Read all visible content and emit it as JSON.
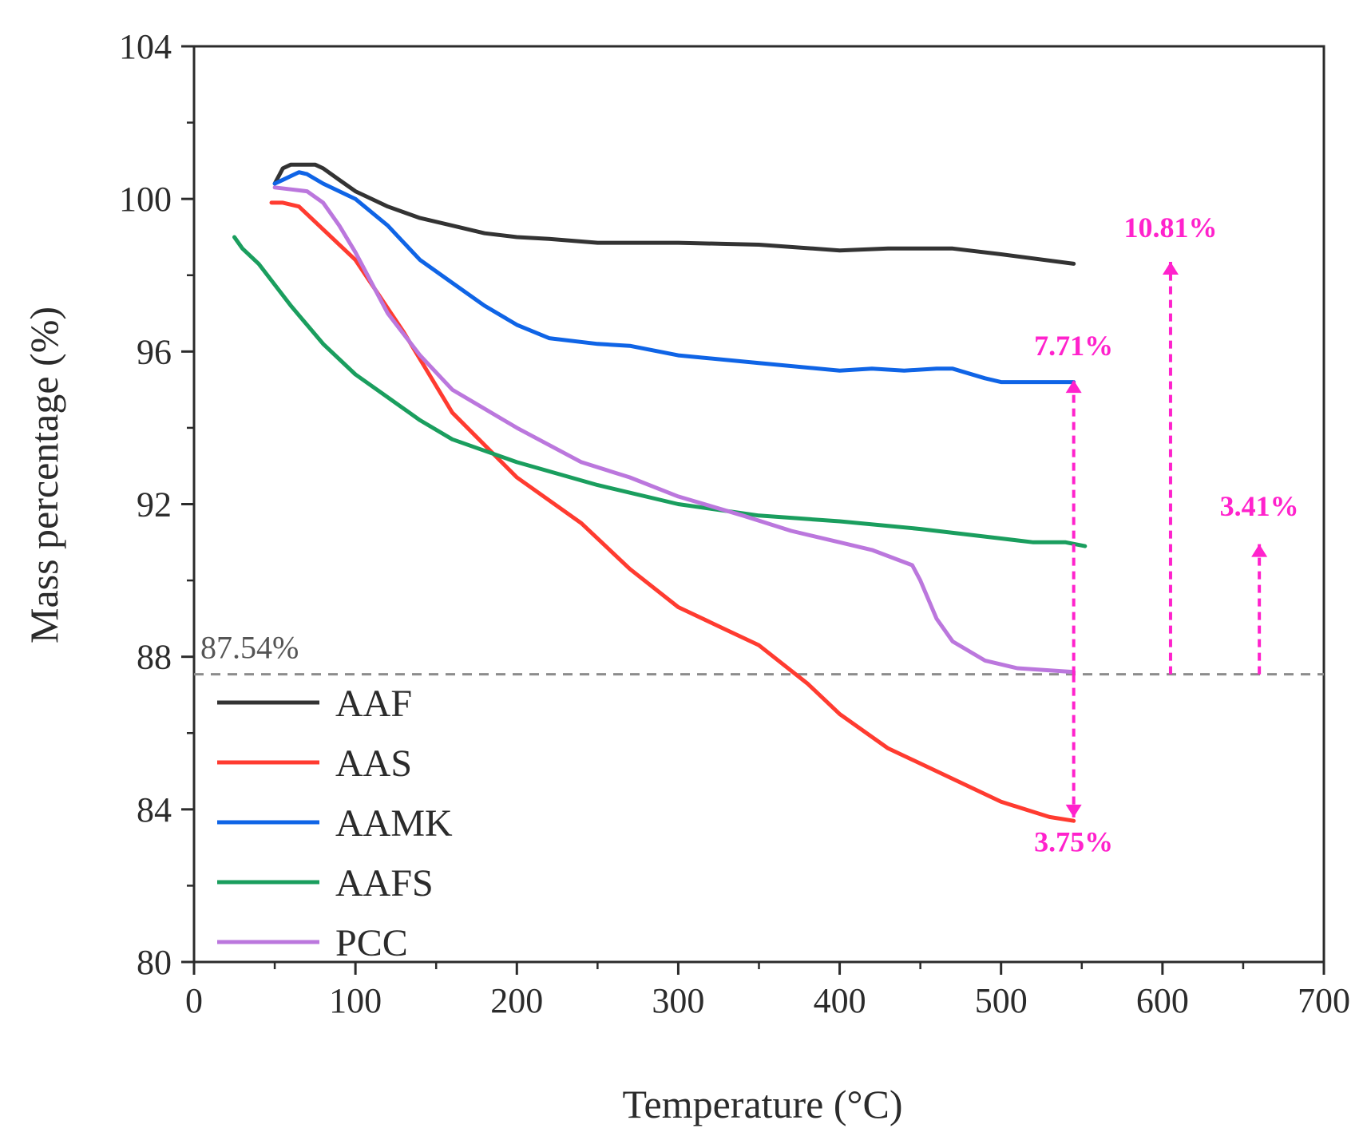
{
  "chart_data": {
    "type": "line",
    "title": "",
    "xlabel": "Temperature (°C)",
    "ylabel": "Mass percentage (%)",
    "xlim": [
      0,
      700
    ],
    "ylim": [
      80,
      104
    ],
    "xticks": [
      0,
      100,
      200,
      300,
      400,
      500,
      600,
      700
    ],
    "yticks": [
      80,
      84,
      88,
      92,
      96,
      100,
      104
    ],
    "xtick_labels": [
      "0",
      "100",
      "200",
      "300",
      "400",
      "500",
      "600",
      "700"
    ],
    "ytick_labels": [
      "80",
      "84",
      "88",
      "92",
      "96",
      "100",
      "104"
    ],
    "grid": false,
    "legend_position": "bottom-left",
    "annotation_color": "#ff22cc",
    "series": [
      {
        "name": "AAF",
        "color": "#333333",
        "x": [
          50,
          55,
          60,
          65,
          70,
          75,
          80,
          90,
          100,
          120,
          140,
          160,
          180,
          200,
          220,
          250,
          300,
          350,
          400,
          430,
          450,
          470,
          500,
          545
        ],
        "y": [
          100.4,
          100.8,
          100.9,
          100.9,
          100.9,
          100.9,
          100.8,
          100.5,
          100.2,
          99.8,
          99.5,
          99.3,
          99.1,
          99.0,
          98.95,
          98.85,
          98.85,
          98.8,
          98.65,
          98.7,
          98.7,
          98.7,
          98.55,
          98.3
        ]
      },
      {
        "name": "AAS",
        "color": "#ff3b30",
        "x": [
          48,
          55,
          65,
          75,
          100,
          130,
          160,
          200,
          240,
          270,
          300,
          330,
          350,
          380,
          400,
          430,
          460,
          500,
          530,
          545
        ],
        "y": [
          99.9,
          99.9,
          99.8,
          99.4,
          98.4,
          96.5,
          94.4,
          92.7,
          91.5,
          90.3,
          89.3,
          88.7,
          88.3,
          87.3,
          86.5,
          85.6,
          85.0,
          84.2,
          83.8,
          83.7
        ]
      },
      {
        "name": "AAMK",
        "color": "#0f64e6",
        "x": [
          50,
          55,
          60,
          65,
          70,
          80,
          100,
          120,
          140,
          160,
          180,
          200,
          220,
          250,
          270,
          300,
          350,
          400,
          420,
          440,
          460,
          470,
          490,
          500,
          545
        ],
        "y": [
          100.4,
          100.5,
          100.6,
          100.7,
          100.65,
          100.4,
          100.0,
          99.3,
          98.4,
          97.8,
          97.2,
          96.7,
          96.35,
          96.2,
          96.15,
          95.9,
          95.7,
          95.5,
          95.55,
          95.5,
          95.55,
          95.55,
          95.3,
          95.2,
          95.2
        ]
      },
      {
        "name": "AAFS",
        "color": "#1a9e5e",
        "x": [
          25,
          30,
          40,
          60,
          80,
          100,
          120,
          140,
          160,
          200,
          250,
          300,
          350,
          400,
          450,
          500,
          520,
          540,
          552
        ],
        "y": [
          99.0,
          98.7,
          98.3,
          97.2,
          96.2,
          95.4,
          94.8,
          94.2,
          93.7,
          93.1,
          92.5,
          92.0,
          91.7,
          91.55,
          91.35,
          91.1,
          91.0,
          91.0,
          90.9
        ]
      },
      {
        "name": "PCC",
        "color": "#bb77dd",
        "x": [
          50,
          60,
          70,
          80,
          90,
          100,
          120,
          140,
          160,
          200,
          240,
          270,
          300,
          340,
          370,
          400,
          420,
          445,
          450,
          460,
          470,
          490,
          510,
          545
        ],
        "y": [
          100.3,
          100.25,
          100.2,
          99.9,
          99.3,
          98.6,
          97.0,
          95.9,
          95.0,
          94.0,
          93.1,
          92.7,
          92.2,
          91.7,
          91.3,
          91.0,
          90.8,
          90.4,
          90.0,
          89.0,
          88.4,
          87.9,
          87.7,
          87.6
        ]
      }
    ],
    "reference_line": {
      "y": 87.54,
      "label": "87.54%",
      "color": "#8c8c8c"
    },
    "annotations": [
      {
        "label": "7.71%",
        "arrow_x": 545,
        "from_y": 87.54,
        "to_y": 95.25,
        "style": "up",
        "label_x": 545,
        "label_y": 95.9
      },
      {
        "label": "3.75%",
        "arrow_x": 545,
        "from_y": 87.54,
        "to_y": 83.79,
        "style": "down",
        "label_x": 545,
        "label_y": 82.9
      },
      {
        "label": "10.81%",
        "arrow_x": 605,
        "from_y": 87.54,
        "to_y": 98.35,
        "style": "up",
        "label_x": 605,
        "label_y": 99.0
      },
      {
        "label": "3.41%",
        "arrow_x": 660,
        "from_y": 87.54,
        "to_y": 90.95,
        "style": "up",
        "label_x": 660,
        "label_y": 91.7
      }
    ]
  }
}
